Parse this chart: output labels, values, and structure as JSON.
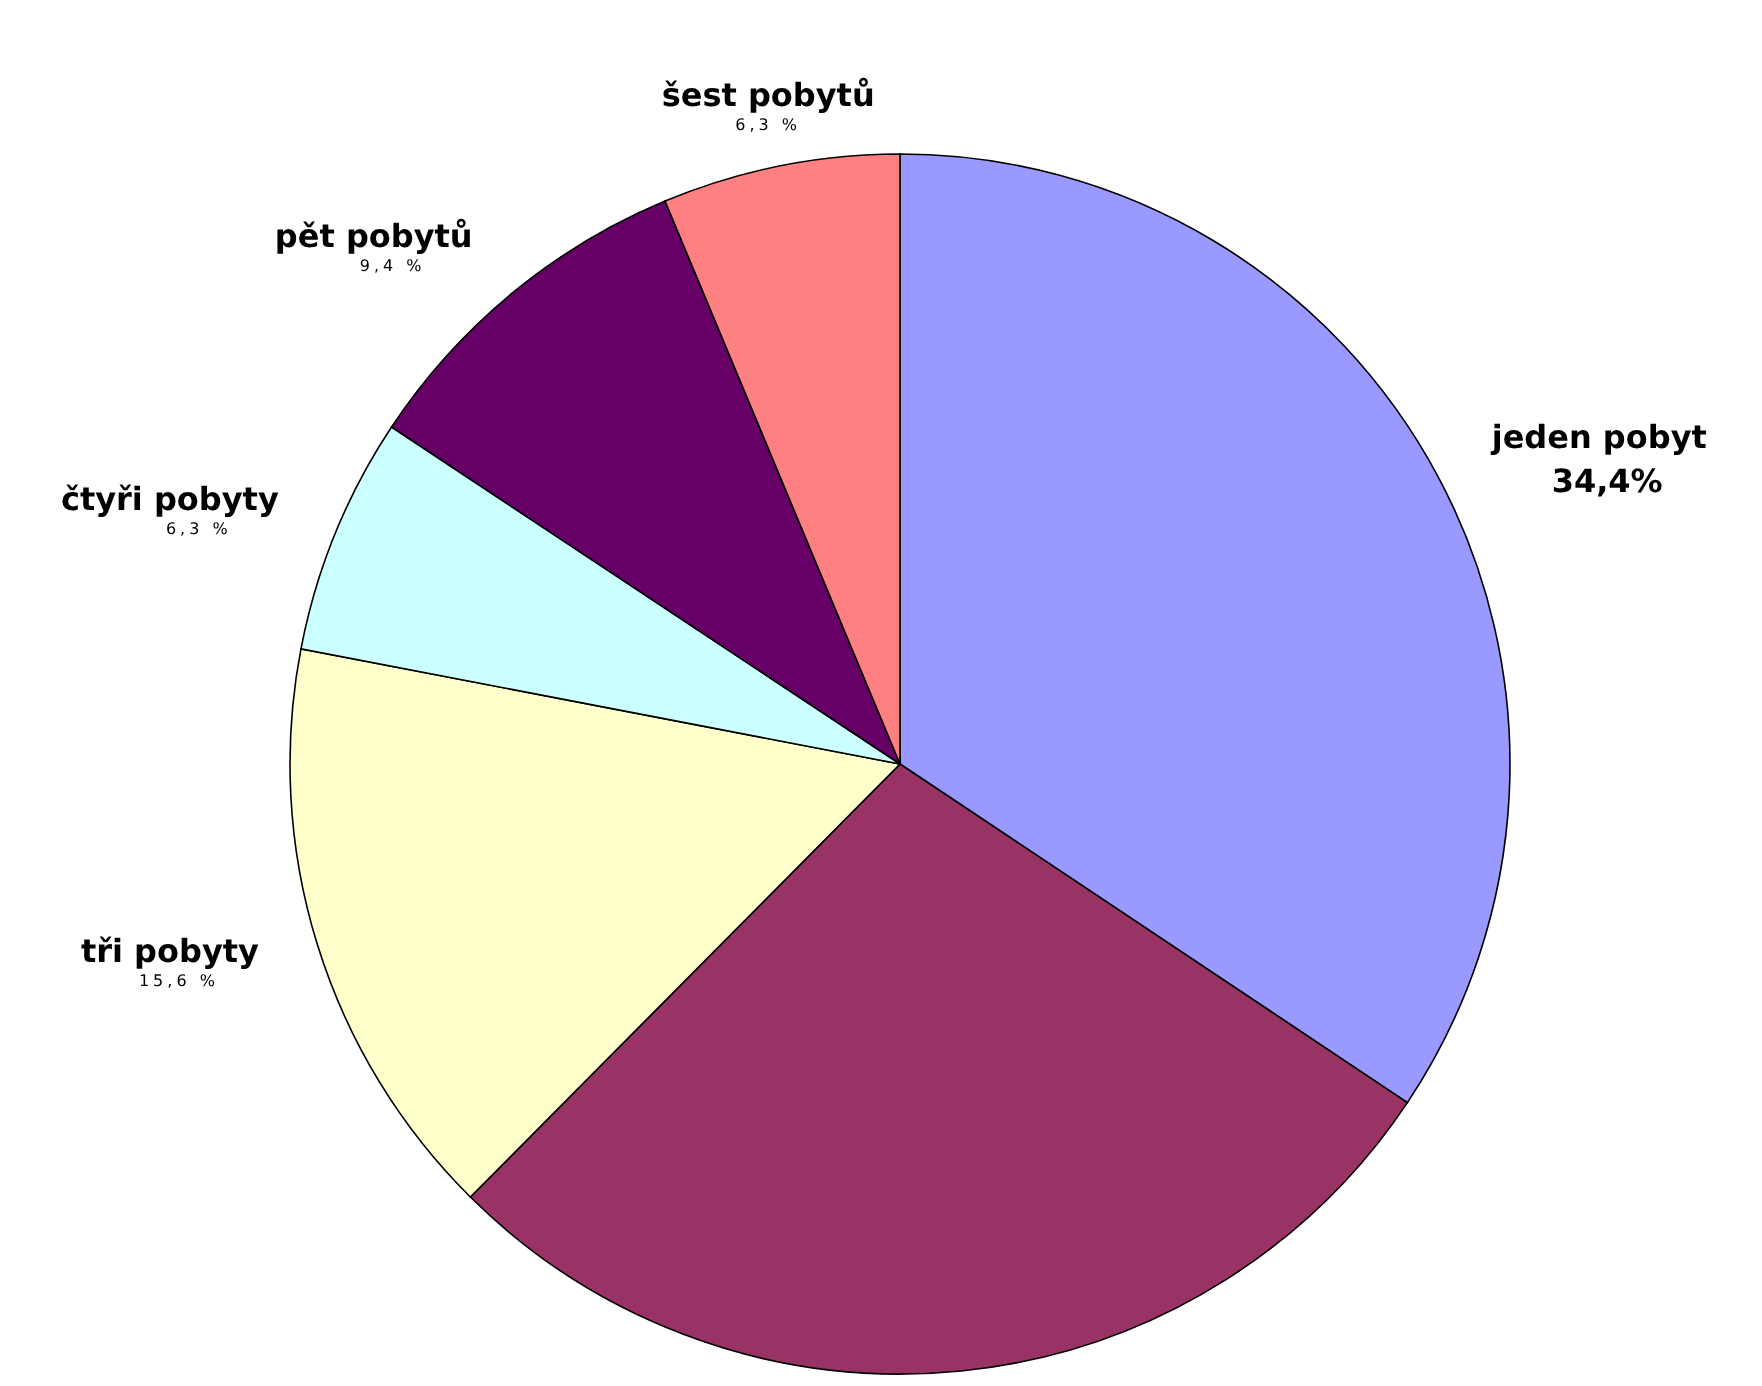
{
  "chart_data": {
    "type": "pie",
    "categories": [
      "jeden pobyt",
      null,
      "tři pobyty",
      "čtyři pobyty",
      "pět pobytů",
      "šest pobytů"
    ],
    "values": [
      34.4,
      28.1,
      15.6,
      6.3,
      9.4,
      6.3
    ],
    "colors": [
      "#9999ff",
      "#993366",
      "#ffffcc",
      "#ccffff",
      "#660066",
      "#ff8080"
    ],
    "value_labels": [
      "34,4%",
      null,
      "15,6 %",
      "6,3 %",
      "9,4 %",
      "6,3 %"
    ]
  }
}
